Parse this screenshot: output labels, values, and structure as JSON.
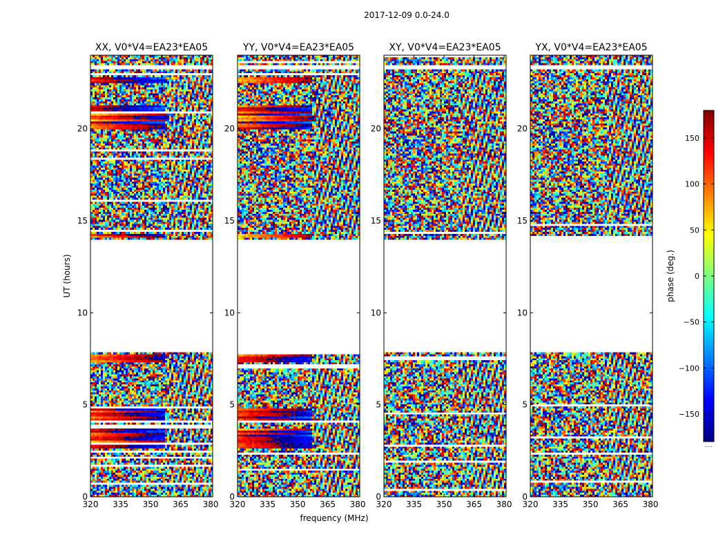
{
  "figure": {
    "suptitle": "2017-12-09 0.0-24.0",
    "shared_xlabel": "frequency (MHz)",
    "shared_ylabel": "UT (hours)",
    "colorbar_footer": "....."
  },
  "colormap": {
    "name": "jet",
    "stops": [
      "#00007f",
      "#0000ff",
      "#007fff",
      "#00ffff",
      "#7fff7f",
      "#ffff00",
      "#ff7f00",
      "#ff0000",
      "#7f0000"
    ]
  },
  "chart_data": [
    {
      "type": "heatmap",
      "title": "XX, V0*V4=EA23*EA05",
      "xlim": [
        320,
        381
      ],
      "ylim": [
        0,
        24
      ],
      "xticks": [
        320,
        335,
        350,
        365,
        380
      ],
      "yticks": [
        0,
        5,
        10,
        15,
        20
      ],
      "xlabel": "",
      "ylabel": "UT (hours)",
      "value_range": [
        -180,
        180
      ],
      "data_gaps_hours": [
        [
          7.8,
          14.0
        ],
        [
          23.2,
          23.4
        ]
      ],
      "coherent_bands_hours": [
        [
          2.6,
          3.7
        ],
        [
          4.0,
          4.8
        ],
        [
          7.3,
          7.7
        ],
        [
          14.1,
          14.3
        ],
        [
          20.0,
          21.3
        ],
        [
          22.5,
          22.8
        ]
      ]
    },
    {
      "type": "heatmap",
      "title": "YY, V0*V4=EA23*EA05",
      "xlim": [
        320,
        381
      ],
      "ylim": [
        0,
        24
      ],
      "xticks": [
        320,
        335,
        350,
        365,
        380
      ],
      "yticks": [
        0,
        5,
        10,
        15,
        20
      ],
      "xlabel": "frequency (MHz)",
      "ylabel": "",
      "value_range": [
        -180,
        180
      ],
      "data_gaps_hours": [
        [
          7.8,
          14.0
        ],
        [
          23.2,
          23.4
        ]
      ],
      "coherent_bands_hours": [
        [
          2.6,
          3.7
        ],
        [
          4.0,
          4.8
        ],
        [
          7.3,
          7.7
        ],
        [
          14.1,
          14.3
        ],
        [
          20.0,
          21.3
        ],
        [
          22.5,
          22.8
        ]
      ]
    },
    {
      "type": "heatmap",
      "title": "XY, V0*V4=EA23*EA05",
      "xlim": [
        320,
        381
      ],
      "ylim": [
        0,
        24
      ],
      "xticks": [
        320,
        335,
        350,
        365,
        380
      ],
      "yticks": [
        0,
        5,
        10,
        15,
        20
      ],
      "xlabel": "",
      "ylabel": "",
      "value_range": [
        -180,
        180
      ],
      "data_gaps_hours": [
        [
          7.8,
          14.0
        ],
        [
          23.2,
          23.4
        ]
      ],
      "coherent_bands_hours": []
    },
    {
      "type": "heatmap",
      "title": "YX, V0*V4=EA23*EA05",
      "xlim": [
        320,
        381
      ],
      "ylim": [
        0,
        24
      ],
      "xticks": [
        320,
        335,
        350,
        365,
        380
      ],
      "yticks": [
        0,
        5,
        10,
        15,
        20
      ],
      "xlabel": "",
      "ylabel": "",
      "value_range": [
        -180,
        180
      ],
      "data_gaps_hours": [
        [
          7.8,
          14.0
        ],
        [
          23.2,
          23.4
        ]
      ],
      "coherent_bands_hours": []
    }
  ],
  "colorbar": {
    "label": "phase (deg.)",
    "range": [
      -180,
      180
    ],
    "ticks": [
      -150,
      -100,
      -50,
      0,
      50,
      100,
      150
    ],
    "tick_labels": [
      "−150",
      "−100",
      "−50",
      "0",
      "50",
      "100",
      "150"
    ]
  }
}
